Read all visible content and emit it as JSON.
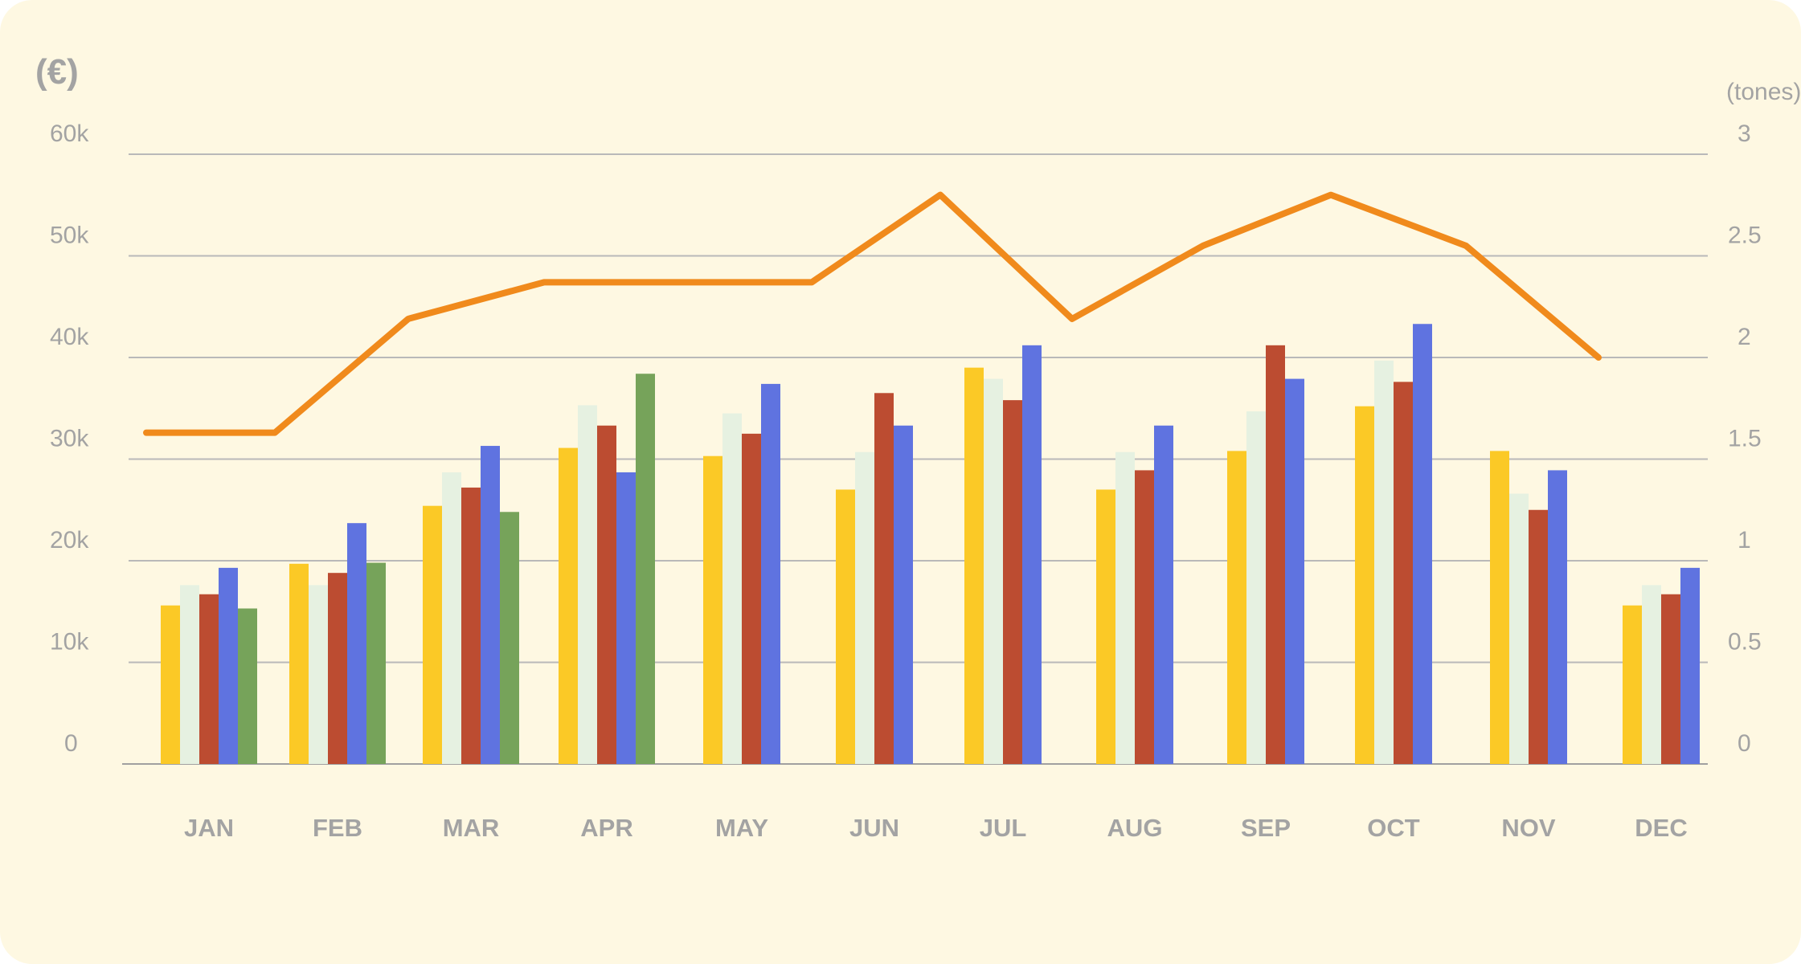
{
  "chart_data": {
    "type": "bar",
    "categories": [
      "JAN",
      "FEB",
      "MAR",
      "APR",
      "MAY",
      "JUN",
      "JUL",
      "AUG",
      "SEP",
      "OCT",
      "NOV",
      "DEC"
    ],
    "y_unit_left": "(€)",
    "y_unit_right": "(tones)",
    "ylim_left": [
      0,
      60000
    ],
    "ylim_right": [
      0,
      3
    ],
    "y_ticks_left": [
      "0",
      "10k",
      "20k",
      "30k",
      "40k",
      "50k",
      "60k"
    ],
    "y_ticks_right": [
      "0",
      "0.5",
      "1",
      "1.5",
      "2",
      "2.5",
      "3"
    ],
    "grid": true,
    "series": [
      {
        "type": "bar",
        "axis": "left",
        "color": "#fbc926",
        "values": [
          15600,
          19700,
          25400,
          31100,
          30300,
          27000,
          39000,
          27000,
          30800,
          35200,
          30800,
          15600
        ]
      },
      {
        "type": "bar",
        "axis": "left",
        "color": "#e6f1e1",
        "values": [
          17600,
          17600,
          28700,
          35300,
          34500,
          30700,
          37900,
          30700,
          34700,
          39700,
          26600,
          17600
        ]
      },
      {
        "type": "bar",
        "axis": "left",
        "color": "#bc4c31",
        "values": [
          16700,
          18800,
          27200,
          33300,
          32500,
          36500,
          35800,
          28900,
          41200,
          37600,
          25000,
          16700
        ]
      },
      {
        "type": "bar",
        "axis": "left",
        "color": "#5f73e0",
        "values": [
          19300,
          23700,
          31300,
          28700,
          37400,
          33300,
          41200,
          33300,
          37900,
          43300,
          28900,
          19300
        ]
      },
      {
        "type": "bar",
        "axis": "left",
        "color": "#76a35a",
        "values": [
          15300,
          19800,
          24800,
          38400,
          null,
          null,
          null,
          null,
          null,
          null,
          null,
          null
        ]
      },
      {
        "type": "line",
        "axis": "right",
        "color": "#f08a1c",
        "values": [
          1.63,
          1.63,
          2.19,
          2.37,
          2.37,
          2.37,
          2.8,
          2.19,
          2.55,
          2.8,
          2.55,
          2.0
        ]
      }
    ]
  }
}
